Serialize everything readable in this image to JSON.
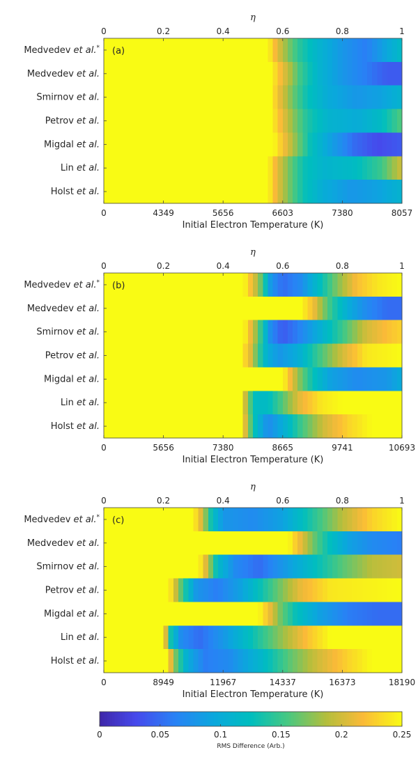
{
  "chart_data": [
    {
      "type": "heatmap",
      "panel_label": "(a)",
      "xlabel": "Initial Electron Temperature (K)",
      "x2label": "η",
      "x2ticks": [
        "0",
        "0.2",
        "0.4",
        "0.6",
        "0.8",
        "1"
      ],
      "xticks": [
        "0",
        "4349",
        "5656",
        "6603",
        "7380",
        "8057"
      ],
      "rows": [
        {
          "prefix": "Medvedev ",
          "italic": "et al.",
          "suffix": "*",
          "profile": [
            [
              0,
              0.25
            ],
            [
              0.55,
              0.25
            ],
            [
              0.58,
              0.21
            ],
            [
              0.62,
              0.17
            ],
            [
              0.66,
              0.14
            ],
            [
              0.72,
              0.11
            ],
            [
              0.8,
              0.08
            ],
            [
              0.88,
              0.06
            ],
            [
              0.94,
              0.09
            ],
            [
              1,
              0.12
            ]
          ]
        },
        {
          "prefix": "Medvedev ",
          "italic": "et al.",
          "suffix": "",
          "profile": [
            [
              0,
              0.25
            ],
            [
              0.56,
              0.25
            ],
            [
              0.59,
              0.22
            ],
            [
              0.62,
              0.19
            ],
            [
              0.66,
              0.15
            ],
            [
              0.72,
              0.11
            ],
            [
              0.8,
              0.08
            ],
            [
              0.88,
              0.06
            ],
            [
              0.95,
              0.04
            ],
            [
              1,
              0.04
            ]
          ]
        },
        {
          "prefix": "Smirnov ",
          "italic": "et al.",
          "suffix": "",
          "profile": [
            [
              0,
              0.25
            ],
            [
              0.56,
              0.25
            ],
            [
              0.59,
              0.21
            ],
            [
              0.63,
              0.17
            ],
            [
              0.68,
              0.13
            ],
            [
              0.75,
              0.1
            ],
            [
              0.85,
              0.08
            ],
            [
              0.93,
              0.09
            ],
            [
              1,
              0.11
            ]
          ]
        },
        {
          "prefix": "Petrov ",
          "italic": "et al.",
          "suffix": "",
          "profile": [
            [
              0,
              0.25
            ],
            [
              0.56,
              0.25
            ],
            [
              0.59,
              0.22
            ],
            [
              0.63,
              0.18
            ],
            [
              0.68,
              0.14
            ],
            [
              0.75,
              0.11
            ],
            [
              0.85,
              0.1
            ],
            [
              0.93,
              0.12
            ],
            [
              1,
              0.16
            ]
          ]
        },
        {
          "prefix": "Migdal ",
          "italic": "et al.",
          "suffix": "",
          "profile": [
            [
              0,
              0.25
            ],
            [
              0.57,
              0.25
            ],
            [
              0.6,
              0.22
            ],
            [
              0.64,
              0.18
            ],
            [
              0.69,
              0.13
            ],
            [
              0.76,
              0.09
            ],
            [
              0.84,
              0.05
            ],
            [
              0.92,
              0.03
            ],
            [
              1,
              0.04
            ]
          ]
        },
        {
          "prefix": "Lin ",
          "italic": "et al.",
          "suffix": "",
          "profile": [
            [
              0,
              0.25
            ],
            [
              0.55,
              0.25
            ],
            [
              0.58,
              0.21
            ],
            [
              0.62,
              0.17
            ],
            [
              0.67,
              0.13
            ],
            [
              0.74,
              0.11
            ],
            [
              0.84,
              0.12
            ],
            [
              0.93,
              0.15
            ],
            [
              1,
              0.2
            ]
          ]
        },
        {
          "prefix": "Holst ",
          "italic": "et al.",
          "suffix": "",
          "profile": [
            [
              0,
              0.25
            ],
            [
              0.55,
              0.25
            ],
            [
              0.58,
              0.21
            ],
            [
              0.62,
              0.17
            ],
            [
              0.67,
              0.13
            ],
            [
              0.74,
              0.1
            ],
            [
              0.83,
              0.08
            ],
            [
              0.92,
              0.09
            ],
            [
              1,
              0.11
            ]
          ]
        }
      ]
    },
    {
      "type": "heatmap",
      "panel_label": "(b)",
      "xlabel": "Initial Electron Temperature (K)",
      "x2label": "η",
      "x2ticks": [
        "0",
        "0.2",
        "0.4",
        "0.6",
        "0.8",
        "1"
      ],
      "xticks": [
        "0",
        "5656",
        "7380",
        "8665",
        "9741",
        "10693"
      ],
      "rows": [
        {
          "prefix": "Medvedev ",
          "italic": "et al.",
          "suffix": "*",
          "profile": [
            [
              0,
              0.25
            ],
            [
              0.47,
              0.25
            ],
            [
              0.5,
              0.21
            ],
            [
              0.53,
              0.16
            ],
            [
              0.56,
              0.08
            ],
            [
              0.6,
              0.05
            ],
            [
              0.66,
              0.07
            ],
            [
              0.72,
              0.12
            ],
            [
              0.78,
              0.17
            ],
            [
              0.85,
              0.22
            ],
            [
              0.92,
              0.24
            ],
            [
              1,
              0.25
            ]
          ]
        },
        {
          "prefix": "Medvedev ",
          "italic": "et al.",
          "suffix": "",
          "profile": [
            [
              0,
              0.25
            ],
            [
              0.66,
              0.25
            ],
            [
              0.7,
              0.22
            ],
            [
              0.73,
              0.18
            ],
            [
              0.77,
              0.14
            ],
            [
              0.82,
              0.1
            ],
            [
              0.88,
              0.07
            ],
            [
              0.95,
              0.05
            ],
            [
              1,
              0.05
            ]
          ]
        },
        {
          "prefix": "Smirnov ",
          "italic": "et al.",
          "suffix": "",
          "profile": [
            [
              0,
              0.25
            ],
            [
              0.47,
              0.25
            ],
            [
              0.5,
              0.2
            ],
            [
              0.53,
              0.14
            ],
            [
              0.56,
              0.07
            ],
            [
              0.6,
              0.04
            ],
            [
              0.65,
              0.06
            ],
            [
              0.72,
              0.1
            ],
            [
              0.8,
              0.15
            ],
            [
              0.88,
              0.2
            ],
            [
              0.95,
              0.22
            ],
            [
              1,
              0.23
            ]
          ]
        },
        {
          "prefix": "Petrov ",
          "italic": "et al.",
          "suffix": "",
          "profile": [
            [
              0,
              0.25
            ],
            [
              0.46,
              0.25
            ],
            [
              0.49,
              0.21
            ],
            [
              0.52,
              0.15
            ],
            [
              0.55,
              0.1
            ],
            [
              0.59,
              0.08
            ],
            [
              0.65,
              0.1
            ],
            [
              0.72,
              0.15
            ],
            [
              0.8,
              0.2
            ],
            [
              0.88,
              0.24
            ],
            [
              1,
              0.25
            ]
          ]
        },
        {
          "prefix": "Migdal ",
          "italic": "et al.",
          "suffix": "",
          "profile": [
            [
              0,
              0.25
            ],
            [
              0.6,
              0.25
            ],
            [
              0.63,
              0.21
            ],
            [
              0.66,
              0.17
            ],
            [
              0.7,
              0.13
            ],
            [
              0.76,
              0.09
            ],
            [
              0.85,
              0.07
            ],
            [
              0.95,
              0.08
            ],
            [
              1,
              0.1
            ]
          ]
        },
        {
          "prefix": "Lin ",
          "italic": "et al.",
          "suffix": "",
          "profile": [
            [
              0,
              0.25
            ],
            [
              0.46,
              0.25
            ],
            [
              0.48,
              0.18
            ],
            [
              0.51,
              0.12
            ],
            [
              0.55,
              0.12
            ],
            [
              0.6,
              0.16
            ],
            [
              0.66,
              0.21
            ],
            [
              0.73,
              0.24
            ],
            [
              0.8,
              0.25
            ],
            [
              1,
              0.25
            ]
          ]
        },
        {
          "prefix": "Holst ",
          "italic": "et al.",
          "suffix": "",
          "profile": [
            [
              0,
              0.25
            ],
            [
              0.46,
              0.25
            ],
            [
              0.48,
              0.19
            ],
            [
              0.51,
              0.12
            ],
            [
              0.55,
              0.07
            ],
            [
              0.6,
              0.1
            ],
            [
              0.66,
              0.15
            ],
            [
              0.74,
              0.2
            ],
            [
              0.82,
              0.23
            ],
            [
              0.9,
              0.25
            ],
            [
              1,
              0.25
            ]
          ]
        }
      ]
    },
    {
      "type": "heatmap",
      "panel_label": "(c)",
      "xlabel": "Initial Electron Temperature (K)",
      "x2label": "η",
      "x2ticks": [
        "0",
        "0.2",
        "0.4",
        "0.6",
        "0.8",
        "1"
      ],
      "xticks": [
        "0",
        "8949",
        "11967",
        "14337",
        "16373",
        "18190"
      ],
      "rows": [
        {
          "prefix": "Medvedev ",
          "italic": "et al.",
          "suffix": "*",
          "profile": [
            [
              0,
              0.25
            ],
            [
              0.3,
              0.25
            ],
            [
              0.33,
              0.2
            ],
            [
              0.36,
              0.13
            ],
            [
              0.4,
              0.08
            ],
            [
              0.5,
              0.07
            ],
            [
              0.6,
              0.09
            ],
            [
              0.7,
              0.14
            ],
            [
              0.8,
              0.19
            ],
            [
              0.9,
              0.23
            ],
            [
              1,
              0.25
            ]
          ]
        },
        {
          "prefix": "Medvedev ",
          "italic": "et al.",
          "suffix": "",
          "profile": [
            [
              0,
              0.25
            ],
            [
              0.62,
              0.25
            ],
            [
              0.66,
              0.21
            ],
            [
              0.7,
              0.17
            ],
            [
              0.75,
              0.13
            ],
            [
              0.82,
              0.09
            ],
            [
              0.9,
              0.07
            ],
            [
              1,
              0.06
            ]
          ]
        },
        {
          "prefix": "Smirnov ",
          "italic": "et al.",
          "suffix": "",
          "profile": [
            [
              0,
              0.25
            ],
            [
              0.32,
              0.25
            ],
            [
              0.35,
              0.19
            ],
            [
              0.38,
              0.12
            ],
            [
              0.44,
              0.07
            ],
            [
              0.52,
              0.05
            ],
            [
              0.6,
              0.08
            ],
            [
              0.7,
              0.12
            ],
            [
              0.8,
              0.16
            ],
            [
              0.9,
              0.19
            ],
            [
              1,
              0.2
            ]
          ]
        },
        {
          "prefix": "Petrov ",
          "italic": "et al.",
          "suffix": "",
          "profile": [
            [
              0,
              0.25
            ],
            [
              0.22,
              0.25
            ],
            [
              0.24,
              0.2
            ],
            [
              0.27,
              0.14
            ],
            [
              0.31,
              0.08
            ],
            [
              0.38,
              0.06
            ],
            [
              0.46,
              0.09
            ],
            [
              0.56,
              0.15
            ],
            [
              0.66,
              0.21
            ],
            [
              0.76,
              0.24
            ],
            [
              1,
              0.25
            ]
          ]
        },
        {
          "prefix": "Migdal ",
          "italic": "et al.",
          "suffix": "",
          "profile": [
            [
              0,
              0.25
            ],
            [
              0.52,
              0.25
            ],
            [
              0.55,
              0.22
            ],
            [
              0.59,
              0.17
            ],
            [
              0.64,
              0.13
            ],
            [
              0.72,
              0.09
            ],
            [
              0.82,
              0.06
            ],
            [
              0.92,
              0.05
            ],
            [
              1,
              0.05
            ]
          ]
        },
        {
          "prefix": "Lin ",
          "italic": "et al.",
          "suffix": "",
          "profile": [
            [
              0,
              0.25
            ],
            [
              0.2,
              0.25
            ],
            [
              0.22,
              0.14
            ],
            [
              0.26,
              0.07
            ],
            [
              0.32,
              0.05
            ],
            [
              0.4,
              0.08
            ],
            [
              0.5,
              0.13
            ],
            [
              0.6,
              0.18
            ],
            [
              0.68,
              0.22
            ],
            [
              0.76,
              0.25
            ],
            [
              1,
              0.25
            ]
          ]
        },
        {
          "prefix": "Holst ",
          "italic": "et al.",
          "suffix": "",
          "profile": [
            [
              0,
              0.25
            ],
            [
              0.21,
              0.25
            ],
            [
              0.24,
              0.17
            ],
            [
              0.28,
              0.1
            ],
            [
              0.34,
              0.06
            ],
            [
              0.42,
              0.07
            ],
            [
              0.52,
              0.11
            ],
            [
              0.62,
              0.16
            ],
            [
              0.72,
              0.2
            ],
            [
              0.82,
              0.23
            ],
            [
              0.9,
              0.25
            ],
            [
              1,
              0.25
            ]
          ]
        }
      ]
    }
  ],
  "colorbar": {
    "label": "RMS Difference (Arb.)",
    "ticks": [
      "0",
      "0.05",
      "0.1",
      "0.15",
      "0.2",
      "0.25"
    ],
    "range": [
      0,
      0.25
    ],
    "colormap": "parula"
  }
}
